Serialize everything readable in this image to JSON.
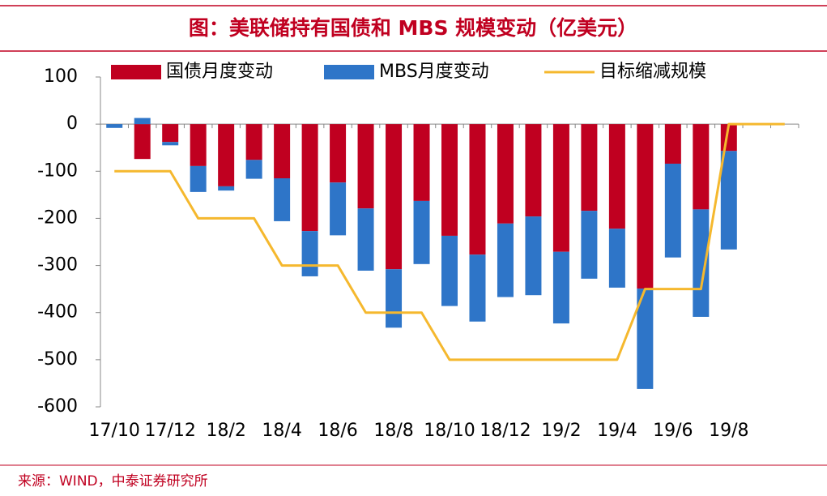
{
  "chart_data": {
    "type": "bar",
    "title": "图：美联储持有国债和 MBS 规模变动（亿美元）",
    "source": "来源：WIND，中泰证券研究所",
    "categories": [
      "17/10",
      null,
      "17/12",
      null,
      "18/2",
      null,
      "18/4",
      null,
      "18/6",
      null,
      "18/8",
      null,
      "18/10",
      null,
      "18/12",
      null,
      "19/2",
      null,
      "19/4",
      null,
      "19/6",
      null,
      "19/8",
      null,
      null
    ],
    "series": [
      {
        "name": "国债月度变动",
        "color": "#c00020",
        "values": [
          0,
          -74,
          -38,
          -89,
          -132,
          -76,
          -115,
          -227,
          -124,
          -179,
          -308,
          -163,
          -237,
          -277,
          -211,
          -196,
          -271,
          -184,
          -222,
          -349,
          -84,
          -181,
          -57,
          null,
          null
        ]
      },
      {
        "name": "MBS月度变动",
        "color": "#2e75c8",
        "values": [
          -8,
          13,
          -7,
          -55,
          -9,
          -40,
          -91,
          -96,
          -112,
          -132,
          -124,
          -134,
          -149,
          -142,
          -156,
          -167,
          -152,
          -144,
          -125,
          -213,
          -199,
          -228,
          -209,
          null,
          null
        ]
      },
      {
        "name": "目标缩减规模",
        "color": "#f5b82e",
        "type": "line",
        "values": [
          -100,
          -100,
          -100,
          -200,
          -200,
          -200,
          -300,
          -300,
          -300,
          -400,
          -400,
          -400,
          -500,
          -500,
          -500,
          -500,
          -500,
          -500,
          -500,
          -350,
          -350,
          -350,
          0,
          0,
          0
        ]
      }
    ],
    "stacked": true,
    "ylim": [
      -600,
      100
    ],
    "yticks": [
      100,
      0,
      -100,
      -200,
      -300,
      -400,
      -500,
      -600
    ],
    "grid": false
  }
}
